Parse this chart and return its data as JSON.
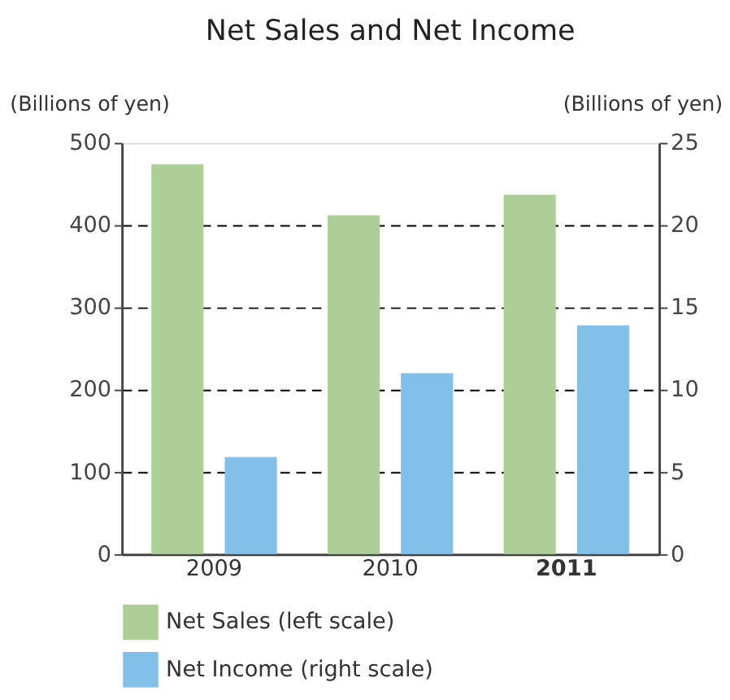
{
  "chart_data": {
    "type": "bar",
    "title": "Net Sales and Net Income",
    "ylabel": "(Billions of yen)",
    "y2label": "(Billions of yen)",
    "categories": [
      "2009",
      "2010",
      "2011"
    ],
    "series": [
      {
        "name": "Net Sales (left scale)",
        "color": "#abcf97",
        "values": [
          474,
          412,
          437
        ]
      },
      {
        "name": "Net Income (right scale)",
        "color": "#82c0ea",
        "values": [
          5.9,
          11.0,
          13.9
        ],
        "axis": "y2"
      }
    ],
    "ylim": [
      0,
      500
    ],
    "yticks": [
      0,
      100,
      200,
      300,
      400,
      500
    ],
    "y2lim": [
      0,
      25
    ],
    "y2ticks": [
      0,
      5,
      10,
      15,
      20,
      25
    ],
    "grid": "y",
    "line_style": "dashed",
    "legend": "bottom"
  }
}
